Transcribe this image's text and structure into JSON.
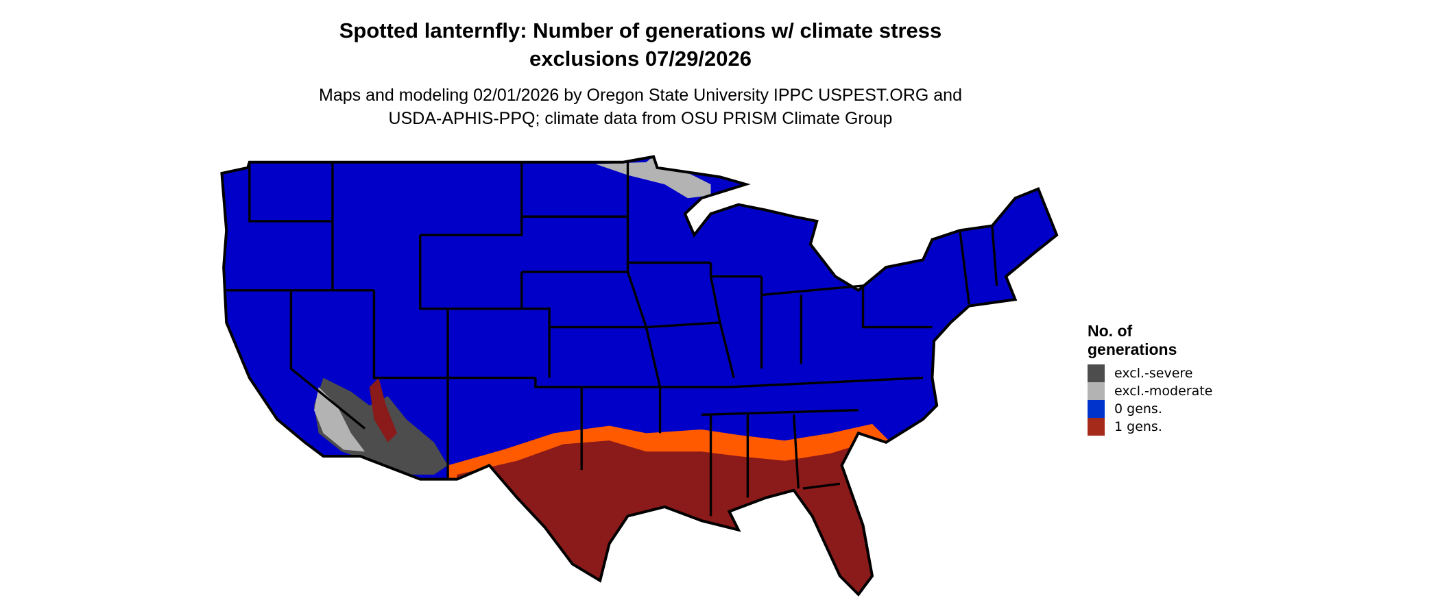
{
  "title": {
    "line1": "Spotted lanternfly: Number of generations w/ climate stress",
    "line2": "exclusions 07/29/2026"
  },
  "subtitle": {
    "line1": "Maps and modeling 02/01/2026 by Oregon State University IPPC USPEST.ORG and",
    "line2": "USDA-APHIS-PPQ; climate data from OSU PRISM Climate Group"
  },
  "legend": {
    "title_line1": "No. of",
    "title_line2": "generations",
    "items": [
      {
        "label": "excl.-severe",
        "color": "#4d4d4d"
      },
      {
        "label": "excl.-moderate",
        "color": "#b3b3b3"
      },
      {
        "label": "0 gens.",
        "color": "#0033cc"
      },
      {
        "label": "1 gens.",
        "color": "#a52a1a"
      }
    ]
  },
  "map_colors": {
    "zero_gens_fill": "#0000c8",
    "one_gen_fill": "#8b1a1a",
    "transition_band": "#ff5a00",
    "severe": "#4d4d4d",
    "moderate": "#b3b3b3"
  }
}
